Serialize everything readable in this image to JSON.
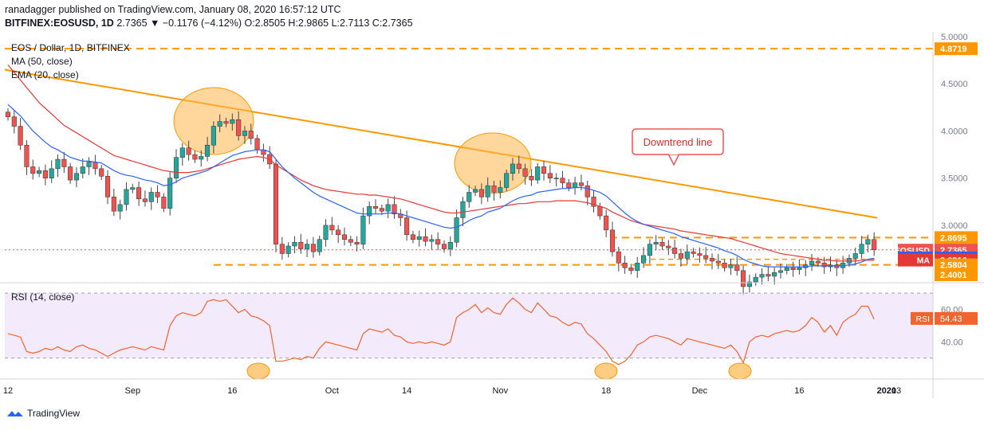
{
  "header": {
    "line1": "ranadagger published on TradingView.com, January 08, 2020 16:57:12 UTC",
    "symbol": "BITFINEX:EOSUSD, 1D",
    "quote": "2.7365 ▼ −0.1176 (−4.12%) O:2.8505 H:2.9865 L:2.7113 C:2.7365"
  },
  "legend": {
    "title": "EOS / Dollar, 1D, BITFINEX",
    "ma": "MA (50, close)",
    "ema": "EMA (20, close)"
  },
  "annotation": {
    "downtrend": "Downtrend line"
  },
  "footer": {
    "brand": "TradingView"
  },
  "colors": {
    "up": "#26a69a",
    "down": "#ef5350",
    "ma": "#e53935",
    "ema": "#2962ff",
    "rsi": "#f0642f",
    "orange": "#ff9800",
    "rsi_band": "#e9d8fa"
  },
  "chart_data": {
    "type": "candlestick",
    "ylim": [
      2.4001,
      5.0
    ],
    "price_ticks": [
      "5.0000",
      "4.5000",
      "4.0000",
      "3.5000",
      "3.0000"
    ],
    "x_ticks": [
      "12",
      "Sep",
      "16",
      "Oct",
      "14",
      "Nov",
      "18",
      "Dec",
      "16",
      "2020",
      "13"
    ],
    "price_labels": [
      {
        "value": 4.8719,
        "text": "4.8719",
        "color": "#ff9800",
        "name": ""
      },
      {
        "value": 2.8695,
        "text": "2.8695",
        "color": "#ff9800",
        "name": ""
      },
      {
        "value": 2.7365,
        "text": "2.7365",
        "color": "#ef5350",
        "name": "EOSUSD"
      },
      {
        "value": 2.6541,
        "text": "2.6541",
        "color": "#2962ff",
        "name": "EMA"
      },
      {
        "value": 2.6316,
        "text": "2.6316",
        "color": "#e53935",
        "name": "MA"
      },
      {
        "value": 2.5804,
        "text": "2.5804",
        "color": "#ff9800",
        "name": ""
      },
      {
        "value": 2.4001,
        "text": "2.4001",
        "color": "#ff9800",
        "name": ""
      }
    ],
    "horizontal_levels": [
      4.8719,
      2.8695,
      2.5804
    ],
    "downtrend_line": {
      "start": 4.65,
      "end": 3.08
    },
    "close": [
      4.15,
      4.05,
      3.85,
      3.62,
      3.55,
      3.58,
      3.5,
      3.6,
      3.7,
      3.62,
      3.48,
      3.55,
      3.62,
      3.67,
      3.6,
      3.52,
      3.3,
      3.15,
      3.22,
      3.38,
      3.4,
      3.28,
      3.25,
      3.35,
      3.3,
      3.18,
      3.5,
      3.72,
      3.82,
      3.75,
      3.7,
      3.73,
      3.85,
      4.05,
      4.1,
      4.08,
      4.12,
      3.95,
      4.0,
      3.92,
      3.8,
      3.75,
      3.65,
      2.8,
      2.7,
      2.78,
      2.82,
      2.75,
      2.8,
      2.72,
      2.85,
      3.0,
      2.95,
      2.9,
      2.85,
      2.82,
      2.8,
      3.1,
      3.2,
      3.18,
      3.15,
      3.22,
      3.12,
      3.08,
      2.9,
      2.85,
      2.88,
      2.83,
      2.85,
      2.8,
      2.75,
      2.82,
      3.08,
      3.25,
      3.35,
      3.38,
      3.3,
      3.42,
      3.35,
      3.4,
      3.55,
      3.65,
      3.6,
      3.52,
      3.48,
      3.62,
      3.55,
      3.5,
      3.5,
      3.45,
      3.4,
      3.45,
      3.42,
      3.3,
      3.2,
      3.1,
      2.95,
      2.72,
      2.6,
      2.55,
      2.52,
      2.6,
      2.68,
      2.8,
      2.82,
      2.78,
      2.76,
      2.7,
      2.65,
      2.72,
      2.7,
      2.68,
      2.65,
      2.62,
      2.6,
      2.55,
      2.58,
      2.52,
      2.35,
      2.4,
      2.45,
      2.48,
      2.46,
      2.5,
      2.52,
      2.55,
      2.53,
      2.55,
      2.58,
      2.62,
      2.6,
      2.56,
      2.58,
      2.55,
      2.6,
      2.65,
      2.7,
      2.8,
      2.85,
      2.74
    ],
    "ma50": [
      4.7,
      4.62,
      4.54,
      4.46,
      4.38,
      4.3,
      4.24,
      4.18,
      4.12,
      4.06,
      4.02,
      3.98,
      3.94,
      3.9,
      3.86,
      3.82,
      3.78,
      3.74,
      3.72,
      3.7,
      3.68,
      3.66,
      3.64,
      3.62,
      3.6,
      3.58,
      3.57,
      3.56,
      3.56,
      3.56,
      3.57,
      3.58,
      3.6,
      3.62,
      3.64,
      3.66,
      3.68,
      3.7,
      3.71,
      3.72,
      3.73,
      3.72,
      3.7,
      3.64,
      3.6,
      3.56,
      3.52,
      3.48,
      3.45,
      3.42,
      3.4,
      3.38,
      3.37,
      3.36,
      3.35,
      3.34,
      3.33,
      3.33,
      3.32,
      3.32,
      3.31,
      3.3,
      3.29,
      3.28,
      3.26,
      3.24,
      3.22,
      3.2,
      3.18,
      3.16,
      3.14,
      3.13,
      3.13,
      3.14,
      3.15,
      3.16,
      3.17,
      3.18,
      3.19,
      3.2,
      3.21,
      3.22,
      3.23,
      3.23,
      3.24,
      3.25,
      3.25,
      3.25,
      3.26,
      3.26,
      3.26,
      3.26,
      3.25,
      3.24,
      3.22,
      3.2,
      3.18,
      3.14,
      3.11,
      3.08,
      3.05,
      3.03,
      3.01,
      3.0,
      2.99,
      2.98,
      2.97,
      2.96,
      2.94,
      2.93,
      2.92,
      2.91,
      2.9,
      2.89,
      2.88,
      2.87,
      2.86,
      2.84,
      2.82,
      2.8,
      2.78,
      2.76,
      2.74,
      2.72,
      2.7,
      2.69,
      2.68,
      2.67,
      2.66,
      2.65,
      2.64,
      2.63,
      2.63,
      2.62,
      2.62,
      2.62,
      2.62,
      2.63,
      2.63,
      2.63
    ],
    "ema20": [
      4.28,
      4.22,
      4.16,
      4.08,
      4.0,
      3.94,
      3.88,
      3.83,
      3.8,
      3.76,
      3.72,
      3.7,
      3.68,
      3.68,
      3.67,
      3.66,
      3.62,
      3.58,
      3.55,
      3.53,
      3.52,
      3.5,
      3.48,
      3.47,
      3.45,
      3.42,
      3.43,
      3.46,
      3.5,
      3.52,
      3.54,
      3.56,
      3.58,
      3.62,
      3.66,
      3.7,
      3.74,
      3.76,
      3.78,
      3.79,
      3.8,
      3.8,
      3.78,
      3.7,
      3.62,
      3.56,
      3.5,
      3.45,
      3.4,
      3.35,
      3.31,
      3.28,
      3.25,
      3.22,
      3.19,
      3.16,
      3.13,
      3.12,
      3.12,
      3.12,
      3.12,
      3.13,
      3.13,
      3.12,
      3.1,
      3.08,
      3.06,
      3.04,
      3.02,
      3.0,
      2.98,
      2.97,
      2.98,
      3.01,
      3.05,
      3.08,
      3.1,
      3.14,
      3.16,
      3.18,
      3.22,
      3.26,
      3.29,
      3.31,
      3.32,
      3.35,
      3.36,
      3.37,
      3.38,
      3.39,
      3.39,
      3.4,
      3.4,
      3.39,
      3.37,
      3.35,
      3.31,
      3.25,
      3.19,
      3.13,
      3.08,
      3.04,
      3.01,
      2.99,
      2.97,
      2.95,
      2.93,
      2.91,
      2.88,
      2.86,
      2.84,
      2.82,
      2.8,
      2.78,
      2.76,
      2.73,
      2.71,
      2.68,
      2.64,
      2.61,
      2.59,
      2.57,
      2.56,
      2.56,
      2.56,
      2.56,
      2.56,
      2.56,
      2.56,
      2.57,
      2.57,
      2.57,
      2.57,
      2.57,
      2.57,
      2.58,
      2.59,
      2.61,
      2.64,
      2.65
    ],
    "rsi": {
      "label": "RSI (14, close)",
      "ylim": [
        20,
        75
      ],
      "ticks": [
        "60.00",
        "40.00"
      ],
      "band": [
        30,
        70
      ],
      "value_label": {
        "name": "RSI",
        "text": "54.43",
        "value": 54.43
      },
      "values": [
        45,
        44,
        43,
        34,
        33,
        34,
        36,
        35,
        37,
        35,
        34,
        37,
        38,
        36,
        35,
        33,
        31,
        33,
        35,
        36,
        37,
        36,
        35,
        37,
        36,
        35,
        50,
        56,
        58,
        57,
        56,
        58,
        65,
        66,
        65,
        66,
        62,
        58,
        60,
        56,
        55,
        53,
        50,
        28,
        28,
        29,
        30,
        29,
        31,
        30,
        36,
        40,
        39,
        38,
        37,
        36,
        35,
        45,
        48,
        47,
        46,
        48,
        44,
        43,
        40,
        39,
        40,
        39,
        40,
        39,
        38,
        40,
        55,
        58,
        60,
        63,
        58,
        61,
        58,
        57,
        63,
        67,
        64,
        60,
        58,
        64,
        60,
        56,
        55,
        52,
        50,
        52,
        51,
        45,
        42,
        38,
        34,
        28,
        26,
        28,
        32,
        38,
        40,
        43,
        44,
        43,
        42,
        40,
        38,
        42,
        41,
        40,
        39,
        38,
        37,
        36,
        38,
        34,
        27,
        40,
        43,
        44,
        43,
        45,
        46,
        47,
        46,
        47,
        50,
        55,
        52,
        46,
        50,
        44,
        52,
        55,
        57,
        62,
        62,
        54
      ]
    }
  }
}
